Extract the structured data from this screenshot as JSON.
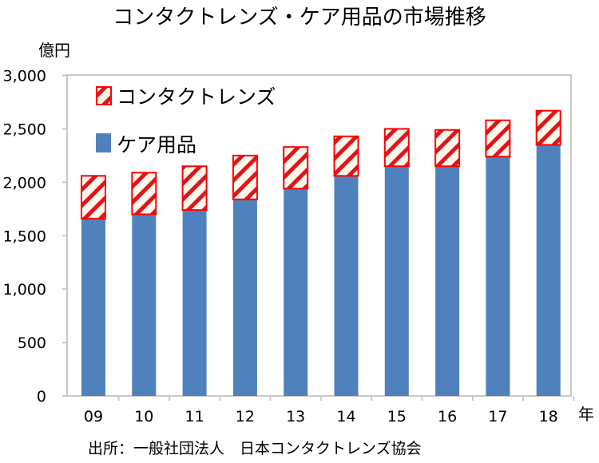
{
  "chart_data": {
    "type": "bar",
    "stacked": true,
    "title": "コンタクトレンズ・ケア用品の市場推移",
    "ylabel": "億円",
    "xlabel": "年",
    "ylim": [
      0,
      3000
    ],
    "yticks": [
      "0",
      "500",
      "1,000",
      "1,500",
      "2,000",
      "2,500",
      "3,000"
    ],
    "ytick_values": [
      0,
      500,
      1000,
      1500,
      2000,
      2500,
      3000
    ],
    "categories": [
      "09",
      "10",
      "11",
      "12",
      "13",
      "14",
      "15",
      "16",
      "17",
      "18"
    ],
    "series": [
      {
        "name": "ケア用品",
        "color": "#4f81bd",
        "values": [
          1660,
          1700,
          1740,
          1840,
          1940,
          2060,
          2150,
          2150,
          2240,
          2350
        ]
      },
      {
        "name": "コンタクトレンズ",
        "color": "#ff0000",
        "pattern": "diagonal-hatch",
        "values": [
          400,
          390,
          410,
          410,
          390,
          370,
          350,
          340,
          340,
          320
        ]
      }
    ],
    "legend_placement": "top-left",
    "grid": false,
    "source": "出所：一般社団法人　日本コンタクトレンズ協会"
  }
}
